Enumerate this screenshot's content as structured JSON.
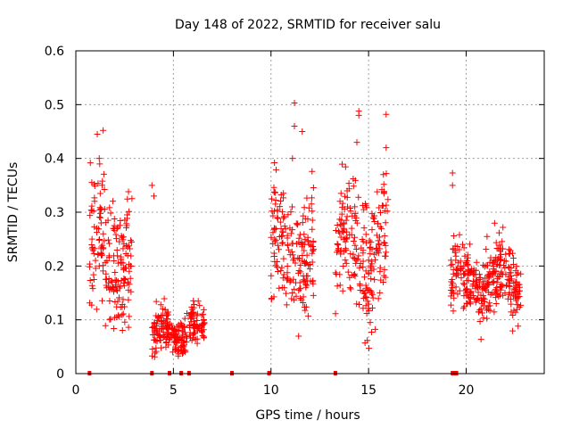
{
  "chart_data": {
    "type": "scatter",
    "title": "Day 148 of 2022, SRMTID for receiver salu",
    "xlabel": "GPS time / hours",
    "ylabel": "SRMTID / TECUs",
    "xlim": [
      0,
      24
    ],
    "ylim": [
      0,
      0.6
    ],
    "x_ticks": [
      0,
      5,
      10,
      15,
      20
    ],
    "x_tick_labels": [
      "0",
      "5",
      "10",
      "15",
      "20"
    ],
    "y_ticks": [
      0,
      0.1,
      0.2,
      0.3,
      0.4,
      0.5,
      0.6
    ],
    "y_tick_labels": [
      "0",
      "0.1",
      "0.2",
      "0.3",
      "0.4",
      "0.5",
      "0.6"
    ],
    "grid": true,
    "marker": "+",
    "series_color": "#ff0000",
    "zero_marks_x": [
      0.7,
      3.9,
      4.8,
      5.4,
      5.8,
      8.0,
      9.9,
      13.3,
      19.3,
      19.4,
      19.5
    ],
    "clusters": [
      {
        "x_range": [
          0.7,
          2.9
        ],
        "center": 0.22,
        "spread": 0.06,
        "count": 200
      },
      {
        "x_range": [
          3.9,
          5.7
        ],
        "center": 0.075,
        "spread": 0.02,
        "count": 170
      },
      {
        "x_range": [
          5.8,
          6.6
        ],
        "center": 0.085,
        "spread": 0.02,
        "count": 70
      },
      {
        "x_range": [
          10.0,
          12.2
        ],
        "center": 0.22,
        "spread": 0.06,
        "count": 190
      },
      {
        "x_range": [
          13.3,
          16.0
        ],
        "center": 0.23,
        "spread": 0.06,
        "count": 220
      },
      {
        "x_range": [
          19.2,
          22.8
        ],
        "center": 0.175,
        "spread": 0.035,
        "count": 330
      }
    ],
    "peaks": [
      {
        "x": 1.1,
        "y": 0.445
      },
      {
        "x": 1.4,
        "y": 0.452
      },
      {
        "x": 1.2,
        "y": 0.4
      },
      {
        "x": 3.9,
        "y": 0.35
      },
      {
        "x": 4.0,
        "y": 0.33
      },
      {
        "x": 11.2,
        "y": 0.503
      },
      {
        "x": 11.2,
        "y": 0.46
      },
      {
        "x": 11.6,
        "y": 0.45
      },
      {
        "x": 11.1,
        "y": 0.4
      },
      {
        "x": 14.5,
        "y": 0.488
      },
      {
        "x": 14.5,
        "y": 0.48
      },
      {
        "x": 14.4,
        "y": 0.43
      },
      {
        "x": 15.9,
        "y": 0.482
      },
      {
        "x": 15.9,
        "y": 0.42
      },
      {
        "x": 19.3,
        "y": 0.373
      },
      {
        "x": 19.3,
        "y": 0.35
      }
    ]
  }
}
